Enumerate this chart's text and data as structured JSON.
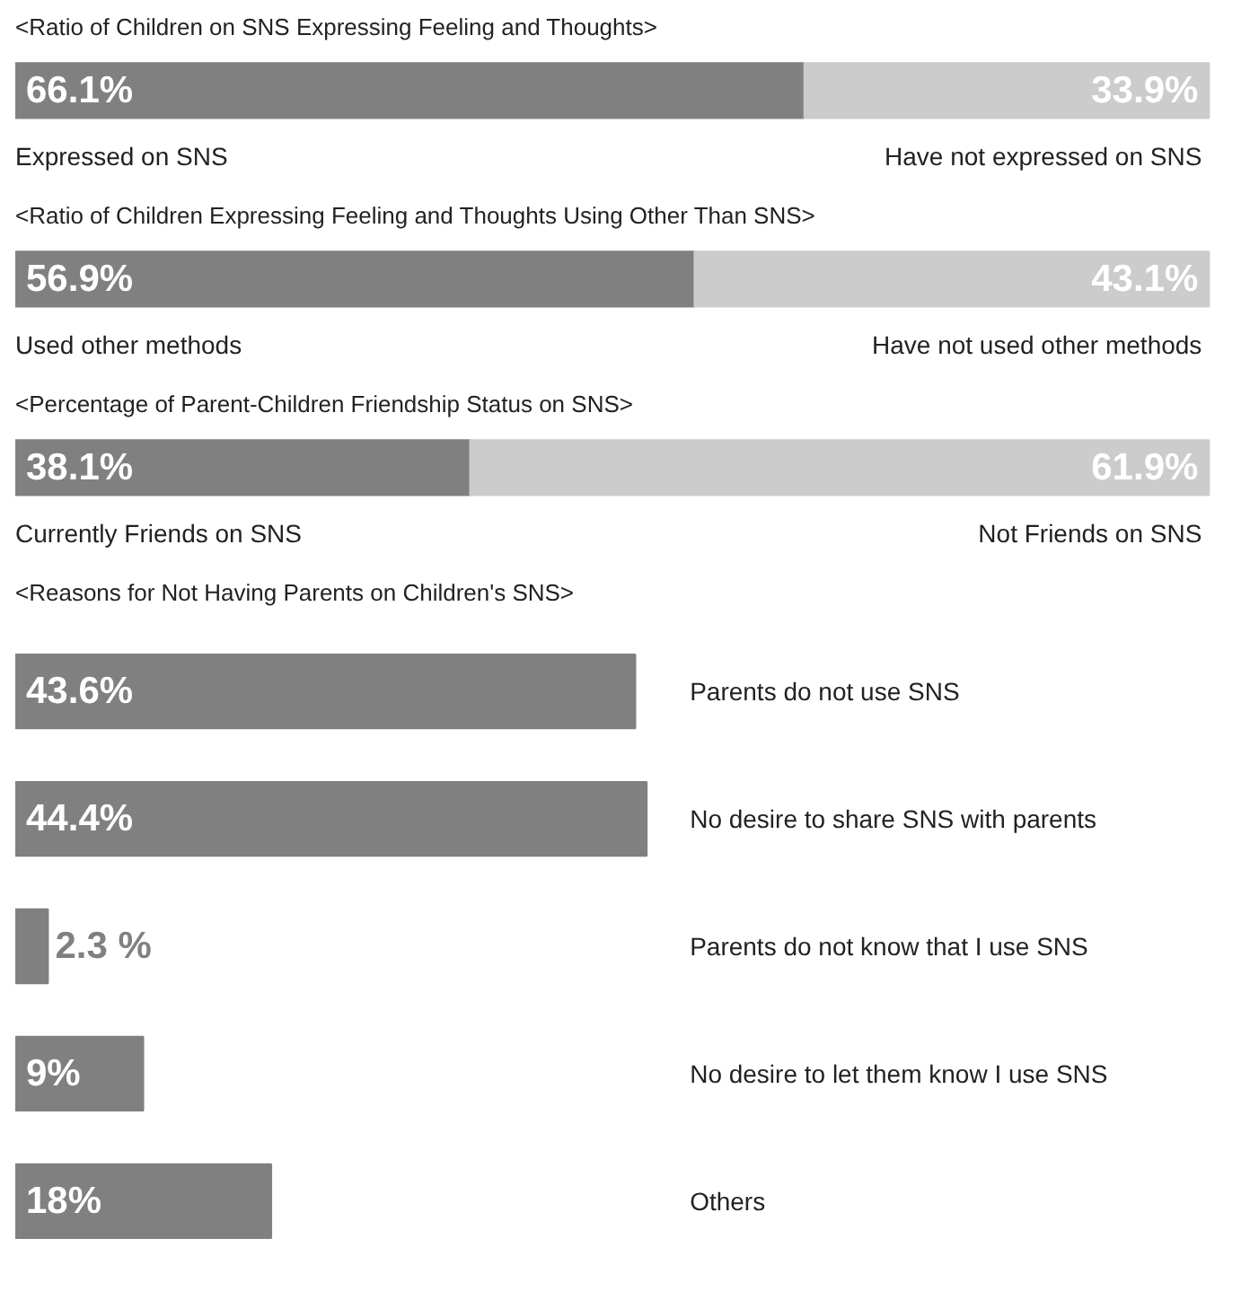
{
  "chart_data": [
    {
      "type": "bar",
      "orientation": "horizontal",
      "stacked": true,
      "title": "<Ratio of Children on SNS Expressing Feeling and Thoughts>",
      "categories": [
        null
      ],
      "series": [
        {
          "name": "Expressed on SNS",
          "color": "#808080",
          "values": [
            66.1
          ],
          "value_labels": [
            "66.1%"
          ]
        },
        {
          "name": "Have not expressed on SNS",
          "color": "#cccccc",
          "values": [
            33.9
          ],
          "value_labels": [
            "33.9%"
          ]
        }
      ]
    },
    {
      "type": "bar",
      "orientation": "horizontal",
      "stacked": true,
      "title": "<Ratio of Children Expressing Feeling and Thoughts Using Other Than SNS>",
      "categories": [
        null
      ],
      "series": [
        {
          "name": "Used other methods",
          "color": "#808080",
          "values": [
            56.9
          ],
          "value_labels": [
            "56.9%"
          ]
        },
        {
          "name": "Have not used other methods",
          "color": "#cccccc",
          "values": [
            43.1
          ],
          "value_labels": [
            "43.1%"
          ]
        }
      ]
    },
    {
      "type": "bar",
      "orientation": "horizontal",
      "stacked": true,
      "title": "<Percentage of Parent-Children Friendship Status on SNS>",
      "categories": [
        null
      ],
      "series": [
        {
          "name": "Currently Friends on SNS",
          "color": "#808080",
          "values": [
            38.1
          ],
          "value_labels": [
            "38.1%"
          ]
        },
        {
          "name": "Not Friends on SNS",
          "color": "#cccccc",
          "values": [
            61.9
          ],
          "value_labels": [
            "61.9%"
          ]
        }
      ]
    },
    {
      "type": "bar",
      "orientation": "horizontal",
      "title": "<Reasons for Not Having Parents on Children's SNS>",
      "categories": [
        "Parents do not use SNS",
        "No desire to share SNS with parents",
        "Parents do not know that I use SNS",
        "No desire to let them know I use SNS",
        "Others"
      ],
      "series": [
        {
          "color": "#808080",
          "values": [
            43.6,
            44.4,
            2.3,
            9,
            18
          ],
          "value_labels": [
            "43.6%",
            "44.4%",
            "2.3 %",
            "9%",
            "18%"
          ]
        }
      ]
    }
  ]
}
